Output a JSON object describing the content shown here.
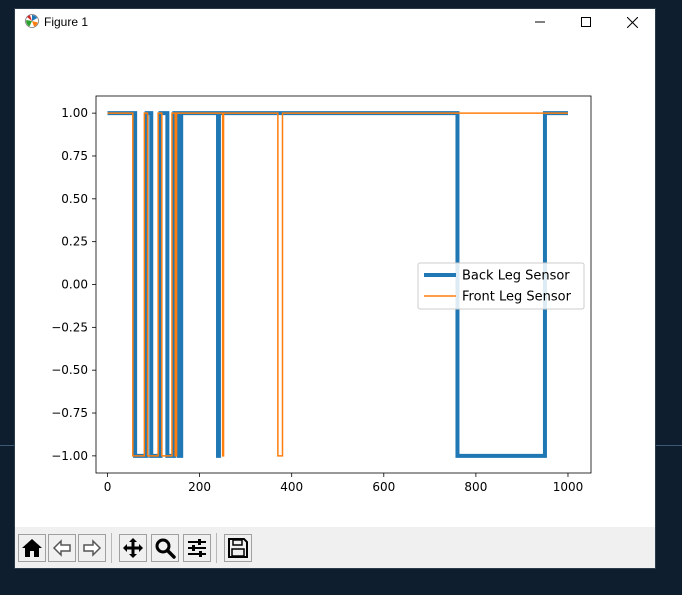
{
  "window": {
    "title": "Figure 1"
  },
  "titlebar_buttons": {
    "minimize_icon": "minimize-icon",
    "maximize_icon": "maximize-icon",
    "close_icon": "close-icon"
  },
  "toolbar": {
    "buttons": [
      {
        "name": "home-button",
        "icon": "home-icon"
      },
      {
        "name": "back-button",
        "icon": "back-arrow-icon"
      },
      {
        "name": "forward-button",
        "icon": "forward-arrow-icon"
      },
      {
        "name": "pan-button",
        "icon": "move-icon"
      },
      {
        "name": "zoom-button",
        "icon": "magnifier-icon"
      },
      {
        "name": "configure-subplots-button",
        "icon": "sliders-icon"
      },
      {
        "name": "save-button",
        "icon": "floppy-disk-icon"
      }
    ]
  },
  "chart_data": {
    "type": "line",
    "title": "",
    "xlabel": "",
    "ylabel": "",
    "xlim": [
      -25,
      1050
    ],
    "ylim": [
      -1.1,
      1.1
    ],
    "xticks": [
      0,
      200,
      400,
      600,
      800,
      1000
    ],
    "xtick_labels": [
      "0",
      "200",
      "400",
      "600",
      "800",
      "1000"
    ],
    "yticks": [
      1.0,
      0.75,
      0.5,
      0.25,
      0.0,
      -0.25,
      -0.5,
      -0.75,
      -1.0
    ],
    "ytick_labels": [
      "1.00",
      "0.75",
      "0.50",
      "0.25",
      "0.00",
      "−0.25",
      "−0.50",
      "−0.75",
      "−1.00"
    ],
    "grid": false,
    "legend_position": "center-right",
    "series": [
      {
        "name": "Back Leg Sensor",
        "color": "#1f77b4",
        "linewidth": 4,
        "x": [
          0,
          60,
          60,
          85,
          85,
          95,
          95,
          115,
          115,
          130,
          130,
          145,
          145,
          155,
          155,
          160,
          160,
          240,
          240,
          242,
          242,
          760,
          760,
          950,
          950,
          1000
        ],
        "y": [
          1,
          1,
          -1,
          -1,
          1,
          1,
          -1,
          -1,
          1,
          1,
          -1,
          -1,
          1,
          1,
          -1,
          -1,
          1,
          1,
          -1,
          -1,
          1,
          1,
          -1,
          -1,
          1,
          1
        ]
      },
      {
        "name": "Front Leg Sensor",
        "color": "#ff7f0e",
        "linewidth": 1.5,
        "x": [
          0,
          55,
          55,
          80,
          80,
          87,
          87,
          110,
          110,
          118,
          118,
          140,
          140,
          147,
          147,
          150,
          150,
          250,
          250,
          252,
          252,
          370,
          370,
          380,
          380,
          1000
        ],
        "y": [
          1,
          1,
          -1,
          -1,
          1,
          1,
          -1,
          -1,
          1,
          1,
          -1,
          -1,
          1,
          1,
          -1,
          -1,
          1,
          1,
          -1,
          -1,
          1,
          1,
          -1,
          -1,
          1,
          1
        ]
      }
    ]
  }
}
